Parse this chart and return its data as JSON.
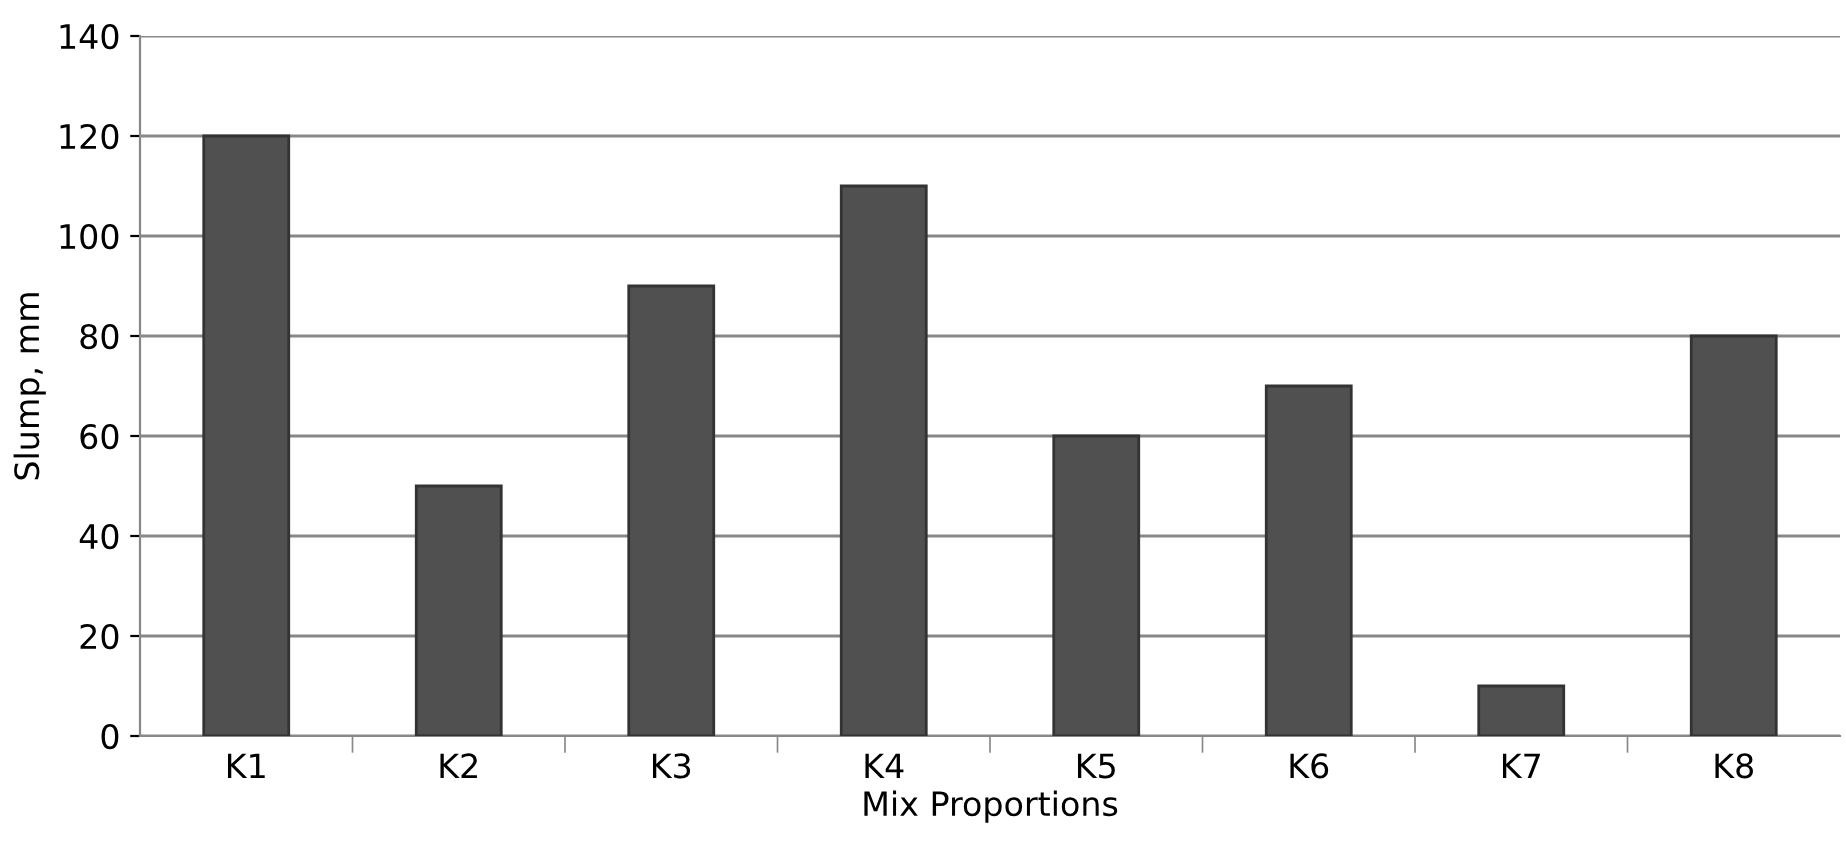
{
  "chart_data": {
    "type": "bar",
    "xlabel": "Mix Proportions",
    "ylabel": "Slump, mm",
    "categories": [
      "K1",
      "K2",
      "K3",
      "K4",
      "K5",
      "K6",
      "K7",
      "K8"
    ],
    "values": [
      120,
      50,
      90,
      110,
      60,
      70,
      10,
      80
    ],
    "color": "#505050",
    "ylim": [
      0,
      140
    ],
    "yticks": [
      0,
      20,
      40,
      60,
      80,
      100,
      120,
      140
    ],
    "grid": "y",
    "legend": false
  }
}
